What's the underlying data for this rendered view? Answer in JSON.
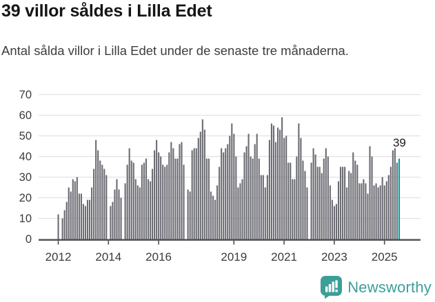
{
  "header": {
    "title": "39 villor såldes i Lilla Edet",
    "subtitle": "Antal sålda villor i Lilla Edet under de senaste tre månaderna."
  },
  "chart_data": {
    "type": "bar",
    "title": "39 villor såldes i Lilla Edet",
    "subtitle": "Antal sålda villor i Lilla Edet under de senaste tre månaderna.",
    "xlabel": "",
    "ylabel": "",
    "start_month": "2012-01",
    "end_month": "2025-08",
    "values": [
      12,
      0,
      10,
      14,
      18,
      25,
      23,
      29,
      28,
      30,
      22,
      22,
      17,
      16,
      19,
      19,
      25,
      34,
      48,
      43,
      38,
      36,
      34,
      31,
      0,
      16,
      18,
      24,
      29,
      24,
      20,
      0,
      27,
      36,
      44,
      38,
      37,
      29,
      26,
      25,
      36,
      37,
      39,
      29,
      28,
      34,
      43,
      48,
      42,
      40,
      36,
      35,
      36,
      42,
      47,
      44,
      39,
      39,
      46,
      47,
      36,
      0,
      24,
      23,
      43,
      44,
      44,
      49,
      52,
      58,
      53,
      39,
      39,
      23,
      21,
      19,
      26,
      35,
      44,
      42,
      44,
      46,
      50,
      56,
      51,
      40,
      25,
      27,
      29,
      42,
      45,
      51,
      40,
      39,
      46,
      51,
      39,
      31,
      31,
      25,
      31,
      48,
      56,
      55,
      47,
      54,
      53,
      59,
      49,
      50,
      37,
      37,
      29,
      29,
      40,
      56,
      49,
      38,
      33,
      25,
      0,
      37,
      44,
      41,
      35,
      35,
      32,
      39,
      44,
      40,
      26,
      19,
      16,
      17,
      28,
      35,
      35,
      35,
      25,
      33,
      32,
      42,
      38,
      36,
      27,
      27,
      29,
      27,
      22,
      45,
      40,
      26,
      27,
      25,
      26,
      30,
      26,
      28,
      31,
      35,
      43,
      44,
      37,
      39
    ],
    "highlight_last": true,
    "annotation": "39",
    "last_value": 39,
    "yticks": [
      0,
      10,
      20,
      30,
      40,
      50,
      60,
      70
    ],
    "ylim": [
      0,
      70
    ],
    "xticks": [
      2012,
      2014,
      2016,
      2019,
      2021,
      2023,
      2025
    ],
    "grid": true,
    "legend": "none",
    "colors": {
      "bar": "#6b6b73",
      "highlight": "#009c9c",
      "grid": "#e1e1e1",
      "axis": "#4d4d4d",
      "axis_text": "#3b3b3b",
      "annotation_text": "#1a1a1a"
    }
  },
  "footer": {
    "brand": "Newsworthy",
    "logo_icon": "newsworthy-speech-bubble-bars-icon"
  }
}
